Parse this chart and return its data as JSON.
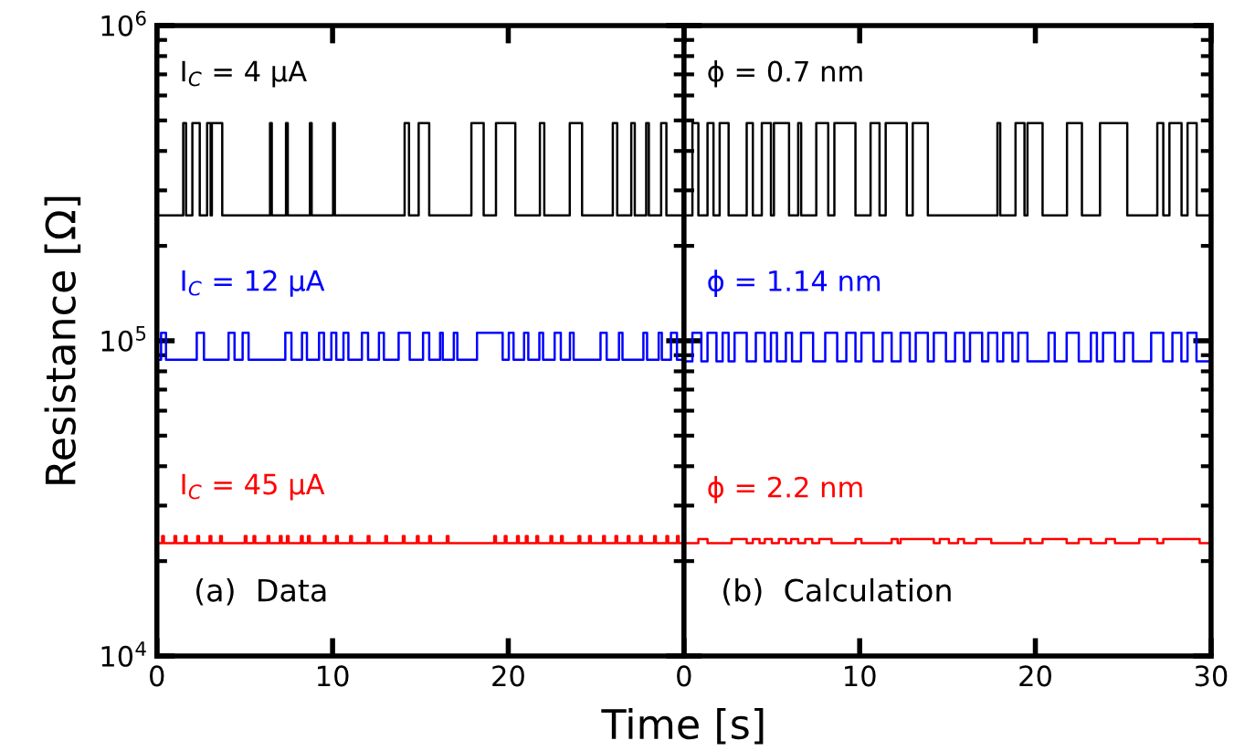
{
  "chart_data": [
    {
      "type": "step",
      "ylabel": "Resistance [Ω]",
      "xlabel": "Time [s]",
      "annotations": [
        "I$_{C}$ = 4 μA",
        "I$_{C}$ = 12 μA",
        "I$_{C}$ = 45 μA",
        "(a)  Data"
      ],
      "log": "y",
      "xlim": [
        0,
        30
      ],
      "ylim": [
        10000,
        1000000
      ],
      "xticks": [
        0,
        10,
        20,
        {
          "value": 30,
          "label": null
        }
      ],
      "yticks": [
        {
          "value": 10000,
          "label": "10$^{4}$"
        },
        {
          "value": 100000,
          "label": "10$^{5}$"
        },
        {
          "value": 1000000,
          "label": "10$^{6}$"
        }
      ],
      "grid": false,
      "legend": false,
      "series": [
        {
          "color": "#000000",
          "x": [
            0,
            1.5,
            1.66,
            2.02,
            2.44,
            2.86,
            3.06,
            3.13,
            3.72,
            6.44,
            6.54,
            7.35,
            7.45,
            8.71,
            8.81,
            10.03,
            10.13,
            14.1,
            14.35,
            14.9,
            15.5,
            17.9,
            18.6,
            19.3,
            20.4,
            21.8,
            22.05,
            23.5,
            24.2,
            25.95,
            26.2,
            27.0,
            27.2,
            27.85,
            28.0,
            28.7,
            29.0,
            30
          ],
          "values": [
            250000,
            490000,
            250000,
            490000,
            250000,
            490000,
            250000,
            490000,
            250000,
            490000,
            250000,
            490000,
            250000,
            490000,
            250000,
            490000,
            250000,
            490000,
            250000,
            490000,
            250000,
            490000,
            250000,
            490000,
            250000,
            490000,
            250000,
            490000,
            250000,
            490000,
            250000,
            490000,
            250000,
            490000,
            250000,
            490000,
            250000,
            250000
          ]
        },
        {
          "color": "#0000ff",
          "x": [
            0,
            0.24,
            0.52,
            2.27,
            2.68,
            4.08,
            4.42,
            4.88,
            5.22,
            7.31,
            7.66,
            8.26,
            8.54,
            9.23,
            9.51,
            9.93,
            10.21,
            10.62,
            10.9,
            11.67,
            12.02,
            12.64,
            12.92,
            13.76,
            14.39,
            15.15,
            15.5,
            16.12,
            16.27,
            16.9,
            17.1,
            18.22,
            19.68,
            20.03,
            20.3,
            20.9,
            21.14,
            21.77,
            21.98,
            22.64,
            22.99,
            23.51,
            23.72,
            25.25,
            25.6,
            26.3,
            26.5,
            27.69,
            27.9,
            28.56,
            28.74,
            29.26,
            29.6,
            30
          ],
          "values": [
            87000,
            106000,
            87000,
            106000,
            87000,
            106000,
            87000,
            106000,
            87000,
            106000,
            87000,
            106000,
            87000,
            106000,
            87000,
            106000,
            87000,
            106000,
            87000,
            106000,
            87000,
            106000,
            87000,
            106000,
            87000,
            106000,
            87000,
            106000,
            87000,
            106000,
            87000,
            106000,
            87000,
            106000,
            87000,
            106000,
            87000,
            106000,
            87000,
            106000,
            87000,
            106000,
            87000,
            106000,
            87000,
            106000,
            87000,
            106000,
            87000,
            106000,
            87000,
            106000,
            87000,
            87000
          ]
        },
        {
          "color": "#ff0000",
          "x": [
            0,
            0.3,
            0.4,
            1.0,
            1.1,
            1.6,
            1.7,
            2.3,
            2.4,
            3.0,
            3.1,
            3.6,
            3.7,
            5.0,
            5.1,
            5.5,
            5.6,
            6.3,
            6.4,
            7.0,
            7.1,
            7.4,
            7.5,
            8.2,
            8.3,
            8.6,
            8.7,
            9.5,
            9.6,
            10.2,
            10.3,
            11.0,
            11.1,
            12.0,
            12.1,
            13.0,
            13.1,
            14.0,
            14.1,
            14.8,
            14.9,
            15.5,
            15.6,
            16.5,
            16.6,
            19.2,
            19.3,
            19.8,
            19.9,
            20.5,
            20.6,
            21.0,
            21.1,
            21.6,
            21.7,
            22.4,
            22.5,
            23.0,
            23.1,
            24.0,
            24.1,
            24.6,
            24.7,
            25.4,
            25.5,
            26.1,
            26.2,
            26.8,
            26.9,
            27.5,
            27.6,
            28.3,
            28.4,
            29.0,
            29.1,
            29.6,
            29.7,
            30
          ],
          "values": [
            22800,
            24000,
            22800,
            24000,
            22800,
            24000,
            22800,
            24000,
            22800,
            24000,
            22800,
            24000,
            22800,
            24000,
            22800,
            24000,
            22800,
            24000,
            22800,
            24000,
            22800,
            24000,
            22800,
            24000,
            22800,
            24000,
            22800,
            24000,
            22800,
            24000,
            22800,
            24000,
            22800,
            24000,
            22800,
            24000,
            22800,
            24000,
            22800,
            24000,
            22800,
            24000,
            22800,
            24000,
            22800,
            24000,
            22800,
            24000,
            22800,
            24000,
            22800,
            24000,
            22800,
            24000,
            22800,
            24000,
            22800,
            24000,
            22800,
            24000,
            22800,
            24000,
            22800,
            24000,
            22800,
            24000,
            22800,
            24000,
            22800,
            24000,
            22800,
            24000,
            22800,
            24000,
            22800,
            24000,
            22800,
            22800
          ]
        }
      ]
    },
    {
      "type": "step",
      "annotations": [
        "ϕ = 0.7 nm",
        "ϕ = 1.14 nm",
        "ϕ = 2.2 nm",
        "(b)  Calculation"
      ],
      "log": "y",
      "xlim": [
        0,
        30
      ],
      "ylim": [
        10000,
        1000000
      ],
      "xticks": [
        0,
        10,
        20,
        30
      ],
      "tick_labels": "x",
      "grid": false,
      "legend": false,
      "series": [
        {
          "color": "#000000",
          "x": [
            0,
            0.48,
            0.82,
            1.34,
            1.68,
            2.03,
            2.54,
            3.57,
            3.92,
            4.43,
            4.95,
            5.12,
            5.98,
            6.5,
            6.67,
            7.53,
            8.21,
            8.56,
            9.76,
            10.62,
            11.13,
            11.48,
            12.68,
            13.02,
            13.88,
            17.84,
            18.0,
            18.87,
            19.38,
            19.55,
            20.41,
            21.8,
            22.65,
            23.68,
            25.23,
            26.94,
            27.28,
            27.63,
            28.32,
            28.66,
            29.18,
            30
          ],
          "values": [
            250000,
            490000,
            250000,
            490000,
            250000,
            490000,
            250000,
            490000,
            250000,
            490000,
            250000,
            490000,
            250000,
            490000,
            250000,
            490000,
            250000,
            490000,
            250000,
            490000,
            250000,
            490000,
            250000,
            490000,
            250000,
            490000,
            250000,
            490000,
            250000,
            490000,
            250000,
            490000,
            250000,
            490000,
            250000,
            490000,
            250000,
            490000,
            250000,
            490000,
            250000,
            250000
          ]
        },
        {
          "color": "#0000ff",
          "x": [
            0,
            0.48,
            0.99,
            1.34,
            1.85,
            2.2,
            2.54,
            2.88,
            3.57,
            4.09,
            4.6,
            4.95,
            5.29,
            5.8,
            6.15,
            6.66,
            7.35,
            8.04,
            8.72,
            9.24,
            9.76,
            10.1,
            10.79,
            11.3,
            11.82,
            12.33,
            12.85,
            13.19,
            13.88,
            14.22,
            14.91,
            15.43,
            15.94,
            16.28,
            16.97,
            17.32,
            17.83,
            18.17,
            18.69,
            19.03,
            19.55,
            20.75,
            21.1,
            21.78,
            22.47,
            23.16,
            23.5,
            23.85,
            24.53,
            25.05,
            25.56,
            26.59,
            27.28,
            27.8,
            28.31,
            28.66,
            29.17,
            30
          ],
          "values": [
            86000,
            106000,
            86000,
            106000,
            86000,
            106000,
            86000,
            106000,
            86000,
            106000,
            86000,
            106000,
            86000,
            106000,
            86000,
            106000,
            86000,
            106000,
            86000,
            106000,
            86000,
            106000,
            86000,
            106000,
            86000,
            106000,
            86000,
            106000,
            86000,
            106000,
            86000,
            106000,
            86000,
            106000,
            86000,
            106000,
            86000,
            106000,
            86000,
            106000,
            86000,
            106000,
            86000,
            106000,
            86000,
            106000,
            86000,
            106000,
            86000,
            106000,
            86000,
            106000,
            86000,
            106000,
            86000,
            106000,
            86000,
            86000
          ]
        },
        {
          "color": "#ff0000",
          "x": [
            0,
            0.82,
            1.34,
            2.71,
            3.57,
            3.92,
            4.3,
            4.6,
            5.0,
            5.4,
            5.8,
            6.1,
            6.5,
            6.9,
            7.3,
            7.7,
            8.4,
            9.76,
            10.1,
            11.82,
            12.16,
            12.33,
            14.22,
            14.56,
            15.08,
            15.6,
            15.94,
            16.63,
            17.49,
            19.38,
            19.72,
            20.41,
            21.78,
            22.47,
            23.16,
            24.02,
            24.53,
            25.91,
            26.94,
            27.28,
            29.35,
            30
          ],
          "values": [
            22800,
            23500,
            22800,
            23500,
            22800,
            23500,
            22800,
            23500,
            22800,
            23500,
            22800,
            23500,
            22800,
            23500,
            22800,
            23500,
            22800,
            23500,
            22800,
            23500,
            22800,
            23500,
            22800,
            23500,
            22800,
            23500,
            22800,
            23500,
            22800,
            23500,
            22800,
            23500,
            22800,
            23500,
            22800,
            23500,
            22800,
            23500,
            22800,
            23500,
            22800,
            22800
          ]
        }
      ]
    }
  ]
}
